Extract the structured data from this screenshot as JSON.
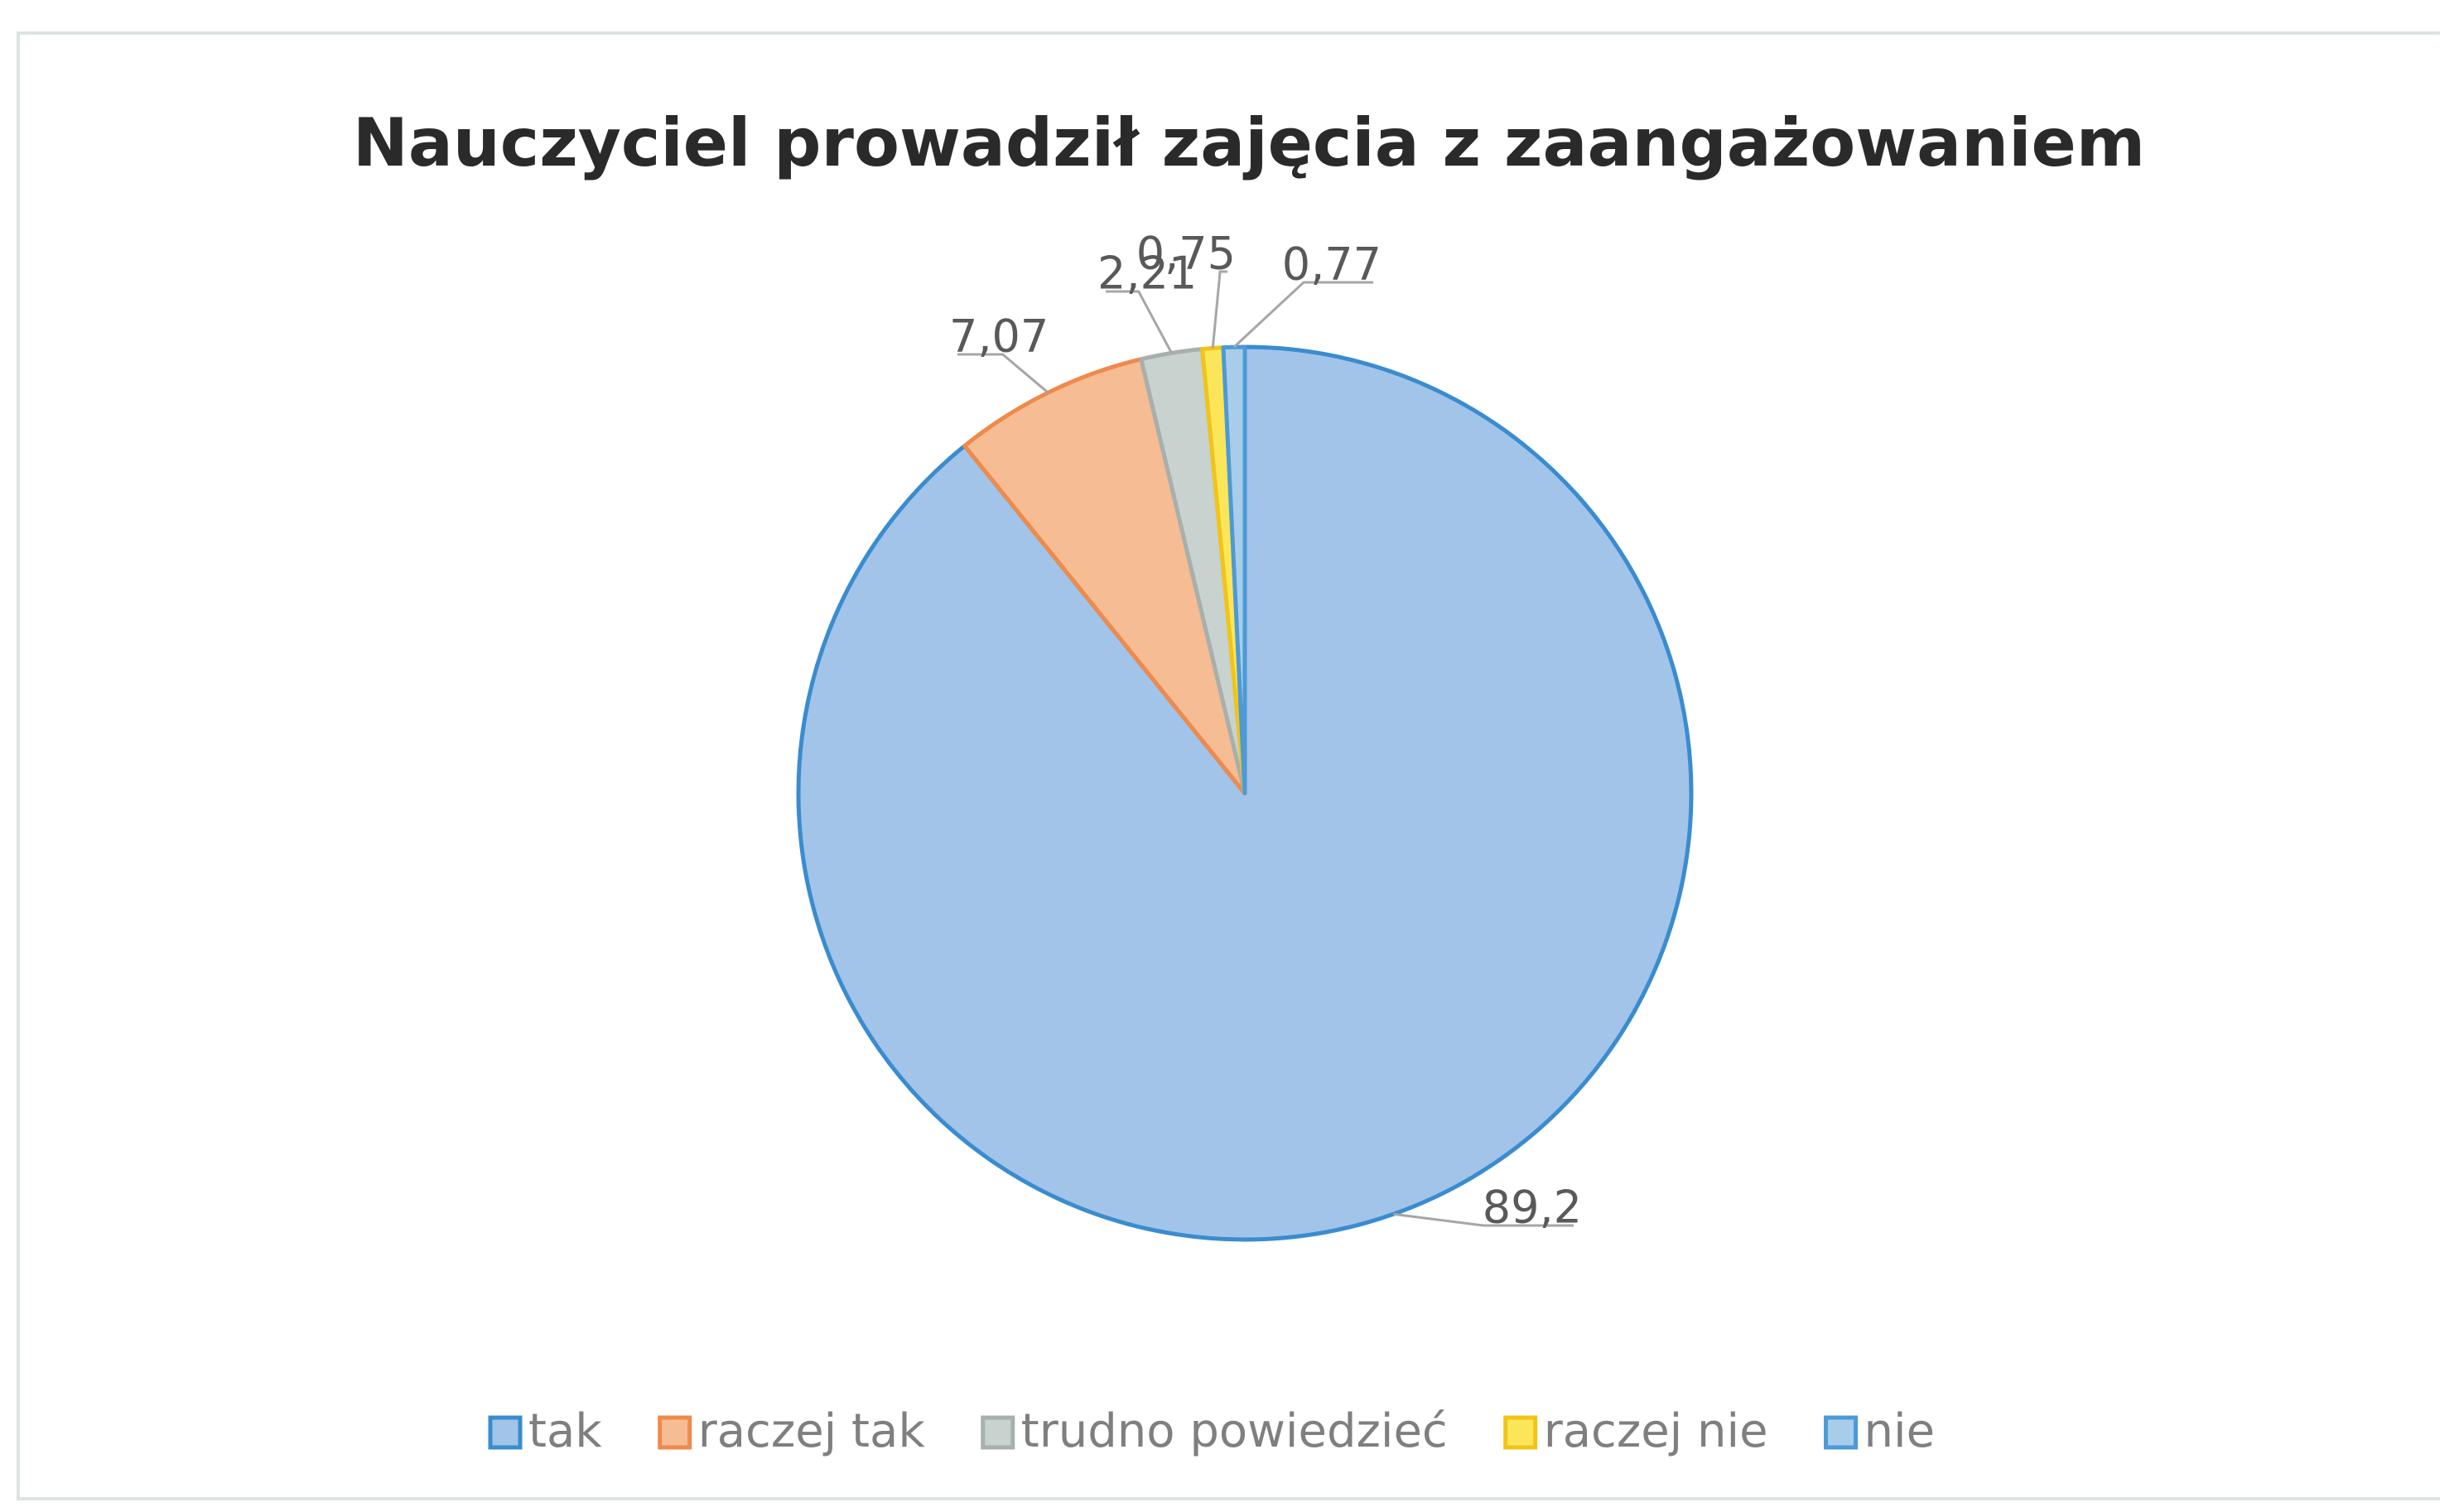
{
  "chart_data": {
    "type": "pie",
    "title": "Nauczyciel prowadził zajęcia z zaangażowaniem",
    "categories": [
      "tak",
      "raczej tak",
      "trudno powiedzieć",
      "raczej nie",
      "nie"
    ],
    "values": [
      89.2,
      7.07,
      2.21,
      0.75,
      0.77
    ],
    "value_labels": [
      "89,2",
      "7,07",
      "2,21",
      "0,75",
      "0,77"
    ],
    "colors": [
      "#a2c4e8",
      "#f6bc94",
      "#c8d2ce",
      "#fbe65a",
      "#a8cdea"
    ],
    "edge_colors": [
      "#3a8ccf",
      "#ef8a4a",
      "#a8b0ad",
      "#f1c419",
      "#4c9ad6"
    ],
    "legend": "bottom"
  }
}
